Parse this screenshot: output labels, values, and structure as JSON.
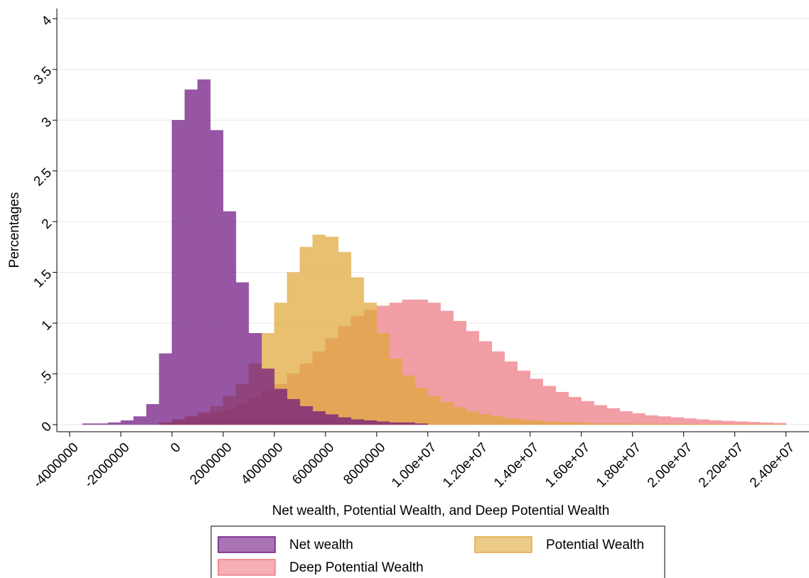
{
  "chart_data": {
    "type": "histogram",
    "xlabel": "Net wealth, Potential Wealth, and Deep Potential Wealth",
    "ylabel": "Percentages",
    "xlim": [
      -4500000,
      24900000
    ],
    "ylim": [
      -0.07,
      4.1
    ],
    "xticks": [
      -4000000,
      -2000000,
      0,
      2000000,
      4000000,
      6000000,
      8000000,
      {
        "value": 10000000,
        "label": "1.00e+07"
      },
      {
        "value": 12000000,
        "label": "1.20e+07"
      },
      {
        "value": 14000000,
        "label": "1.40e+07"
      },
      {
        "value": 16000000,
        "label": "1.60e+07"
      },
      {
        "value": 18000000,
        "label": "1.80e+07"
      },
      {
        "value": 20000000,
        "label": "2.00e+07"
      },
      {
        "value": 22000000,
        "label": "2.20e+07"
      },
      {
        "value": 24000000,
        "label": "2.40e+07"
      }
    ],
    "yticks": [
      0,
      {
        "value": 0.5,
        "label": ".5"
      },
      1,
      1.5,
      2,
      2.5,
      3,
      3.5,
      4
    ],
    "grid": true,
    "series": [
      {
        "name": "Deep Potential Wealth",
        "color": "#ee7a83",
        "bins": [
          -500000,
          0,
          500000,
          1000000,
          1500000,
          2000000,
          2500000,
          3000000,
          3500000,
          4000000,
          4500000,
          5000000,
          5500000,
          6000000,
          6500000,
          7000000,
          7500000,
          8000000,
          8500000,
          9000000,
          9500000,
          10000000,
          10500000,
          11000000,
          11500000,
          12000000,
          12500000,
          13000000,
          13500000,
          14000000,
          14500000,
          15000000,
          15500000,
          16000000,
          16500000,
          17000000,
          17500000,
          18000000,
          18500000,
          19000000,
          19500000,
          20000000,
          20500000,
          21000000,
          21500000,
          22000000,
          22500000,
          23000000,
          23500000,
          24000000
        ],
        "values": [
          0.02,
          0.05,
          0.08,
          0.1,
          0.12,
          0.15,
          0.2,
          0.27,
          0.33,
          0.4,
          0.5,
          0.6,
          0.72,
          0.85,
          0.97,
          1.07,
          1.13,
          1.17,
          1.2,
          1.23,
          1.23,
          1.2,
          1.12,
          1.02,
          0.92,
          0.82,
          0.72,
          0.62,
          0.53,
          0.45,
          0.38,
          0.32,
          0.27,
          0.23,
          0.19,
          0.16,
          0.13,
          0.11,
          0.09,
          0.08,
          0.07,
          0.06,
          0.05,
          0.04,
          0.035,
          0.03,
          0.025,
          0.02,
          0.015
        ]
      },
      {
        "name": "Potential Wealth",
        "color": "#e0a93a",
        "bins": [
          -500000,
          0,
          500000,
          1000000,
          1500000,
          2000000,
          2500000,
          3000000,
          3500000,
          4000000,
          4500000,
          5000000,
          5500000,
          6000000,
          6500000,
          7000000,
          7500000,
          8000000,
          8500000,
          9000000,
          9500000,
          10000000,
          10500000,
          11000000,
          11500000,
          12000000,
          12500000,
          13000000,
          13500000,
          14000000,
          14500000,
          15000000,
          15500000,
          16000000,
          16500000,
          17000000,
          17500000,
          18000000,
          18500000,
          19000000,
          19500000,
          20000000,
          20500000,
          21000000,
          21500000,
          22000000,
          22500000,
          23000000,
          23500000,
          24000000
        ],
        "values": [
          0.02,
          0.05,
          0.08,
          0.12,
          0.18,
          0.28,
          0.4,
          0.6,
          0.9,
          1.2,
          1.5,
          1.75,
          1.87,
          1.85,
          1.7,
          1.45,
          1.2,
          0.9,
          0.65,
          0.48,
          0.36,
          0.28,
          0.22,
          0.17,
          0.13,
          0.1,
          0.08,
          0.06,
          0.05,
          0.04,
          0.03,
          0.025,
          0.02,
          0.015,
          0.01,
          0.01,
          0.01,
          0.008,
          0.007,
          0.006,
          0.005,
          0.005,
          0.004,
          0.004,
          0.003,
          0.003,
          0.003,
          0.002,
          0.002
        ]
      },
      {
        "name": "Net wealth",
        "color": "#6e1680",
        "bins": [
          -3500000,
          -3000000,
          -2500000,
          -2000000,
          -1500000,
          -1000000,
          -500000,
          0,
          500000,
          1000000,
          1500000,
          2000000,
          2500000,
          3000000,
          3500000,
          4000000,
          4500000,
          5000000,
          5500000,
          6000000,
          6500000,
          7000000,
          7500000,
          8000000,
          8500000,
          9000000,
          9500000,
          10000000
        ],
        "values": [
          0.01,
          0.01,
          0.02,
          0.04,
          0.08,
          0.2,
          0.7,
          3.0,
          3.3,
          3.4,
          2.9,
          2.1,
          1.4,
          0.9,
          0.55,
          0.35,
          0.25,
          0.18,
          0.13,
          0.1,
          0.07,
          0.05,
          0.04,
          0.03,
          0.02,
          0.02,
          0.01
        ]
      }
    ]
  }
}
